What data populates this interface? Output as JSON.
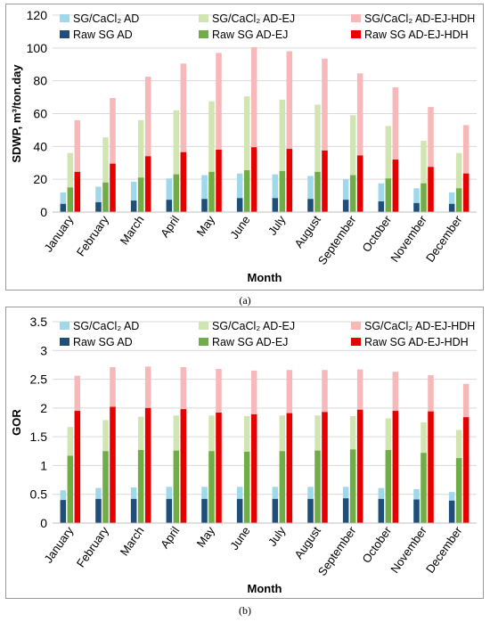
{
  "colors": {
    "sg_ad": "#9fd8ea",
    "raw_ad": "#1f4e79",
    "sg_ej": "#d1e5b3",
    "raw_ej": "#70ad47",
    "sg_hdh": "#f6b8b8",
    "raw_hdh": "#e60000",
    "grid": "#d9d9d9"
  },
  "captions": {
    "a": "(a)",
    "b": "(b)"
  },
  "chart_data": [
    {
      "type": "bar",
      "xlabel": "Month",
      "ylabel": "SDWP, m³/ton.day",
      "ylim": [
        0,
        120
      ],
      "yticks": [
        0,
        20,
        40,
        60,
        80,
        100,
        120
      ],
      "grid": true,
      "legend_placement": "top",
      "categories": [
        "January",
        "February",
        "March",
        "April",
        "May",
        "June",
        "July",
        "August",
        "September",
        "October",
        "November",
        "December"
      ],
      "series": [
        {
          "name": "SG/CaCl₂ AD",
          "color": "sg_ad",
          "values": [
            12,
            15.5,
            18.5,
            20.5,
            22.5,
            23.5,
            23,
            22,
            20,
            17.5,
            14.5,
            12
          ]
        },
        {
          "name": "Raw SG AD",
          "color": "raw_ad",
          "values": [
            5,
            6,
            7,
            7.5,
            8,
            8.5,
            8.5,
            8,
            7.5,
            6.5,
            5.5,
            5
          ]
        },
        {
          "name": "SG/CaCl₂ AD-EJ",
          "color": "sg_ej",
          "values": [
            36,
            45.5,
            56,
            62,
            67.5,
            70.5,
            68.5,
            65.5,
            59,
            52.5,
            43.5,
            36
          ]
        },
        {
          "name": "Raw SG AD-EJ",
          "color": "raw_ej",
          "values": [
            15,
            18,
            21,
            23,
            24.5,
            25.5,
            25,
            24.5,
            22.5,
            20.5,
            17.5,
            14.5
          ]
        },
        {
          "name": "SG/CaCl₂ AD-EJ-HDH",
          "color": "sg_hdh",
          "values": [
            56,
            69.5,
            82.5,
            90.5,
            97,
            100.5,
            98,
            93.5,
            84.5,
            76,
            64,
            53
          ]
        },
        {
          "name": "Raw SG AD-EJ-HDH",
          "color": "raw_hdh",
          "values": [
            24.5,
            29.5,
            34,
            36.5,
            38,
            39.5,
            38.5,
            37.5,
            34.5,
            32,
            27.5,
            23.5
          ]
        }
      ]
    },
    {
      "type": "bar",
      "xlabel": "Month",
      "ylabel": "GOR",
      "ylim": [
        0,
        3.5
      ],
      "yticks": [
        0,
        0.5,
        1,
        1.5,
        2,
        2.5,
        3,
        3.5
      ],
      "grid": true,
      "legend_placement": "top",
      "categories": [
        "January",
        "February",
        "March",
        "April",
        "May",
        "June",
        "July",
        "August",
        "September",
        "October",
        "November",
        "December"
      ],
      "series": [
        {
          "name": "SG/CaCl₂ AD",
          "color": "sg_ad",
          "values": [
            0.57,
            0.61,
            0.62,
            0.63,
            0.63,
            0.63,
            0.63,
            0.63,
            0.63,
            0.61,
            0.59,
            0.54
          ]
        },
        {
          "name": "Raw SG AD",
          "color": "raw_ad",
          "values": [
            0.4,
            0.42,
            0.42,
            0.42,
            0.42,
            0.42,
            0.42,
            0.42,
            0.43,
            0.42,
            0.41,
            0.39
          ]
        },
        {
          "name": "SG/CaCl₂ AD-EJ",
          "color": "sg_ej",
          "values": [
            1.67,
            1.79,
            1.85,
            1.87,
            1.87,
            1.86,
            1.87,
            1.87,
            1.86,
            1.82,
            1.75,
            1.62
          ]
        },
        {
          "name": "Raw SG AD-EJ",
          "color": "raw_ej",
          "values": [
            1.17,
            1.25,
            1.27,
            1.26,
            1.25,
            1.24,
            1.25,
            1.26,
            1.28,
            1.27,
            1.22,
            1.13
          ]
        },
        {
          "name": "SG/CaCl₂ AD-EJ-HDH",
          "color": "sg_hdh",
          "values": [
            2.56,
            2.71,
            2.72,
            2.71,
            2.68,
            2.65,
            2.66,
            2.66,
            2.67,
            2.63,
            2.57,
            2.42
          ]
        },
        {
          "name": "Raw SG AD-EJ-HDH",
          "color": "raw_hdh",
          "values": [
            1.95,
            2.02,
            2.0,
            1.98,
            1.92,
            1.89,
            1.91,
            1.93,
            1.97,
            1.95,
            1.94,
            1.84
          ]
        }
      ]
    }
  ]
}
